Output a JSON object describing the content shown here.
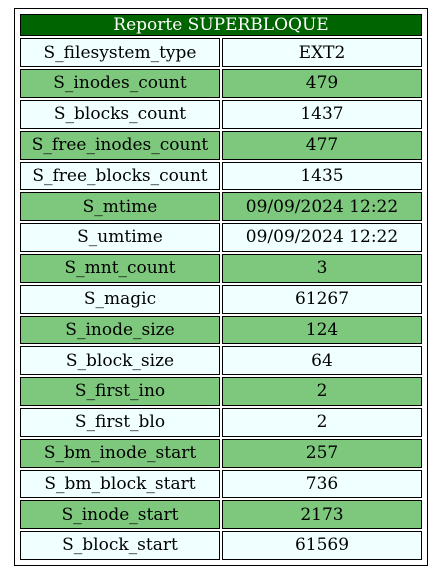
{
  "report": {
    "title": "Reporte SUPERBLOQUE",
    "colors": {
      "header_bg": "#006400",
      "header_text": "#ffffff",
      "row_light": "#f0ffff",
      "row_green": "#7dc87d"
    },
    "rows": [
      {
        "key": "S_filesystem_type",
        "value": "EXT2"
      },
      {
        "key": "S_inodes_count",
        "value": "479"
      },
      {
        "key": "S_blocks_count",
        "value": "1437"
      },
      {
        "key": "S_free_inodes_count",
        "value": "477"
      },
      {
        "key": "S_free_blocks_count",
        "value": "1435"
      },
      {
        "key": "S_mtime",
        "value": "09/09/2024 12:22"
      },
      {
        "key": "S_umtime",
        "value": "09/09/2024 12:22"
      },
      {
        "key": "S_mnt_count",
        "value": "3"
      },
      {
        "key": "S_magic",
        "value": "61267"
      },
      {
        "key": "S_inode_size",
        "value": "124"
      },
      {
        "key": "S_block_size",
        "value": "64"
      },
      {
        "key": "S_first_ino",
        "value": "2"
      },
      {
        "key": "S_first_blo",
        "value": "2"
      },
      {
        "key": "S_bm_inode_start",
        "value": "257"
      },
      {
        "key": "S_bm_block_start",
        "value": "736"
      },
      {
        "key": "S_inode_start",
        "value": "2173"
      },
      {
        "key": "S_block_start",
        "value": "61569"
      }
    ]
  }
}
